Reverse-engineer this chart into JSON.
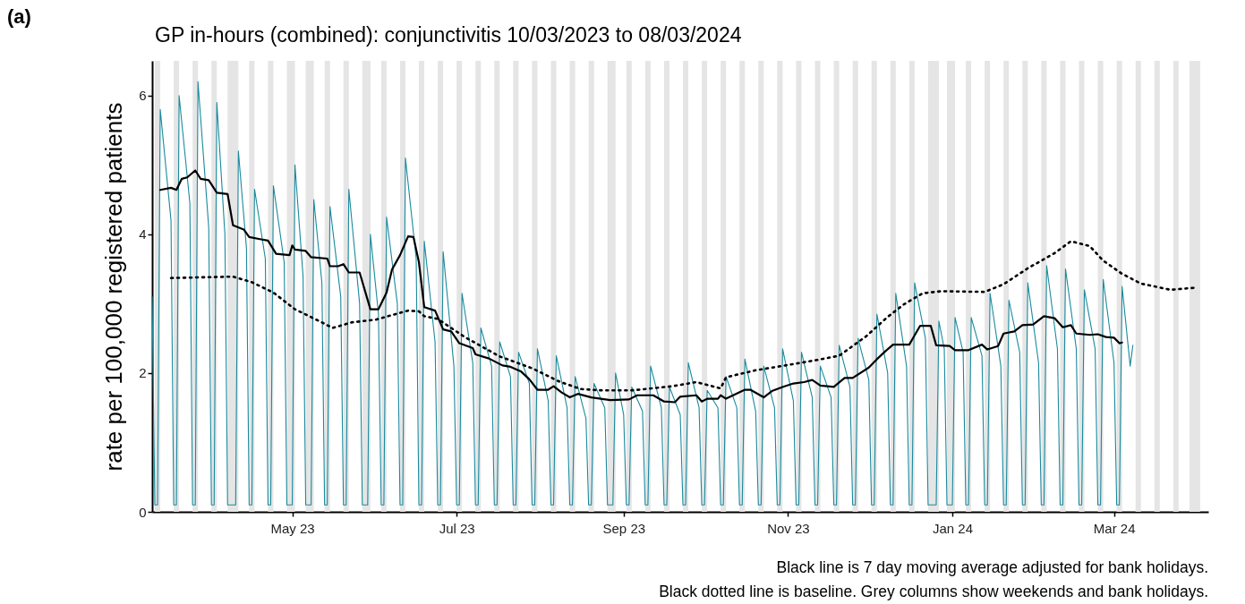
{
  "chart_data": {
    "type": "line",
    "title": "GP in-hours (combined): conjunctivitis 10/03/2023 to 08/03/2024",
    "ylabel": "rate per 100,000 registered patients",
    "annotations": [
      "(a)",
      "Black line is 7 day moving average adjusted for bank holidays.",
      "Black dotted line is baseline. Grey columns show weekends and bank holidays."
    ],
    "xlim": [
      "2023-03-10",
      "2024-04-05"
    ],
    "xticks": [
      {
        "value": "2023-05-01",
        "label": "May 23"
      },
      {
        "value": "2023-07-01",
        "label": "Jul 23"
      },
      {
        "value": "2023-09-01",
        "label": "Sep 23"
      },
      {
        "value": "2023-11-01",
        "label": "Nov 23"
      },
      {
        "value": "2024-01-01",
        "label": "Jan 24"
      },
      {
        "value": "2024-03-01",
        "label": "Mar 24"
      }
    ],
    "ylim": [
      0,
      6.5
    ],
    "yticks": [
      0,
      2,
      4,
      6
    ],
    "series": [
      {
        "color": "#1a8a9e",
        "line_style": "solid",
        "x": [
          "2023-03-10",
          "2023-03-11",
          "2023-03-12",
          "2023-03-13",
          "2023-03-17",
          "2023-03-18",
          "2023-03-19",
          "2023-03-20",
          "2023-03-24",
          "2023-03-25",
          "2023-03-26",
          "2023-03-27",
          "2023-03-31",
          "2023-04-01",
          "2023-04-02",
          "2023-04-03",
          "2023-04-06",
          "2023-04-07",
          "2023-04-10",
          "2023-04-11",
          "2023-04-14",
          "2023-04-15",
          "2023-04-16",
          "2023-04-17",
          "2023-04-21",
          "2023-04-22",
          "2023-04-23",
          "2023-04-24",
          "2023-04-28",
          "2023-04-29",
          "2023-05-01",
          "2023-05-02",
          "2023-05-05",
          "2023-05-06",
          "2023-05-08",
          "2023-05-09",
          "2023-05-12",
          "2023-05-13",
          "2023-05-14",
          "2023-05-15",
          "2023-05-19",
          "2023-05-20",
          "2023-05-21",
          "2023-05-22",
          "2023-05-26",
          "2023-05-27",
          "2023-05-29",
          "2023-05-30",
          "2023-06-02",
          "2023-06-03",
          "2023-06-04",
          "2023-06-05",
          "2023-06-09",
          "2023-06-10",
          "2023-06-11",
          "2023-06-12",
          "2023-06-16",
          "2023-06-17",
          "2023-06-18",
          "2023-06-19",
          "2023-06-23",
          "2023-06-24",
          "2023-06-25",
          "2023-06-26",
          "2023-06-30",
          "2023-07-01",
          "2023-07-02",
          "2023-07-03",
          "2023-07-07",
          "2023-07-08",
          "2023-07-09",
          "2023-07-10",
          "2023-07-14",
          "2023-07-15",
          "2023-07-16",
          "2023-07-17",
          "2023-07-21",
          "2023-07-22",
          "2023-07-23",
          "2023-07-24",
          "2023-07-28",
          "2023-07-29",
          "2023-07-30",
          "2023-07-31",
          "2023-08-04",
          "2023-08-05",
          "2023-08-06",
          "2023-08-07",
          "2023-08-11",
          "2023-08-12",
          "2023-08-13",
          "2023-08-14",
          "2023-08-18",
          "2023-08-19",
          "2023-08-20",
          "2023-08-21",
          "2023-08-25",
          "2023-08-26",
          "2023-08-28",
          "2023-08-29",
          "2023-09-01",
          "2023-09-02",
          "2023-09-03",
          "2023-09-04",
          "2023-09-08",
          "2023-09-09",
          "2023-09-10",
          "2023-09-11",
          "2023-09-15",
          "2023-09-16",
          "2023-09-17",
          "2023-09-18",
          "2023-09-22",
          "2023-09-23",
          "2023-09-24",
          "2023-09-25",
          "2023-09-29",
          "2023-09-30",
          "2023-10-01",
          "2023-10-02",
          "2023-10-06",
          "2023-10-07",
          "2023-10-08",
          "2023-10-09",
          "2023-10-13",
          "2023-10-14",
          "2023-10-15",
          "2023-10-16",
          "2023-10-20",
          "2023-10-21",
          "2023-10-22",
          "2023-10-23",
          "2023-10-27",
          "2023-10-28",
          "2023-10-29",
          "2023-10-30",
          "2023-11-03",
          "2023-11-04",
          "2023-11-05",
          "2023-11-06",
          "2023-11-10",
          "2023-11-11",
          "2023-11-12",
          "2023-11-13",
          "2023-11-17",
          "2023-11-18",
          "2023-11-19",
          "2023-11-20",
          "2023-11-24",
          "2023-11-25",
          "2023-11-26",
          "2023-11-27",
          "2023-12-01",
          "2023-12-02",
          "2023-12-03",
          "2023-12-04",
          "2023-12-08",
          "2023-12-09",
          "2023-12-10",
          "2023-12-11",
          "2023-12-15",
          "2023-12-16",
          "2023-12-17",
          "2023-12-18",
          "2023-12-22",
          "2023-12-23",
          "2023-12-26",
          "2023-12-27",
          "2023-12-29",
          "2023-12-30",
          "2024-01-01",
          "2024-01-02",
          "2024-01-05",
          "2024-01-06",
          "2024-01-07",
          "2024-01-08",
          "2024-01-12",
          "2024-01-13",
          "2024-01-14",
          "2024-01-15",
          "2024-01-19",
          "2024-01-20",
          "2024-01-21",
          "2024-01-22",
          "2024-01-26",
          "2024-01-27",
          "2024-01-28",
          "2024-01-29",
          "2024-02-02",
          "2024-02-03",
          "2024-02-04",
          "2024-02-05",
          "2024-02-09",
          "2024-02-10",
          "2024-02-11",
          "2024-02-12",
          "2024-02-16",
          "2024-02-17",
          "2024-02-18",
          "2024-02-19",
          "2024-02-23",
          "2024-02-24",
          "2024-02-25",
          "2024-02-26",
          "2024-03-01",
          "2024-03-02",
          "2024-03-03",
          "2024-03-04",
          "2024-03-07",
          "2024-03-08"
        ],
        "values": [
          3.1,
          0.1,
          0.1,
          5.8,
          4.2,
          0.1,
          0.1,
          6.0,
          4.45,
          0.1,
          0.1,
          6.2,
          4.1,
          0.1,
          0.1,
          5.9,
          4.0,
          0.1,
          0.1,
          5.2,
          3.8,
          0.1,
          0.1,
          4.65,
          3.65,
          0.1,
          0.1,
          4.7,
          3.6,
          0.1,
          0.1,
          5.0,
          3.4,
          0.1,
          0.1,
          4.5,
          3.3,
          0.1,
          0.1,
          4.4,
          3.1,
          0.1,
          0.1,
          4.65,
          3.0,
          0.1,
          0.1,
          4.0,
          2.85,
          0.1,
          0.1,
          4.25,
          3.0,
          0.1,
          0.1,
          5.1,
          3.65,
          0.1,
          0.1,
          3.9,
          2.45,
          0.1,
          0.1,
          3.75,
          2.1,
          0.1,
          0.1,
          3.15,
          2.15,
          0.1,
          0.1,
          2.65,
          2.1,
          0.1,
          0.1,
          2.45,
          1.95,
          0.1,
          0.1,
          2.3,
          1.85,
          0.1,
          0.1,
          2.35,
          1.6,
          0.1,
          0.1,
          2.25,
          1.5,
          0.1,
          0.1,
          1.95,
          1.35,
          0.1,
          0.1,
          1.85,
          1.5,
          0.1,
          0.1,
          2.0,
          1.4,
          0.1,
          0.1,
          1.8,
          1.45,
          0.1,
          0.1,
          2.1,
          1.5,
          0.1,
          0.1,
          1.8,
          1.4,
          0.1,
          0.1,
          2.15,
          1.5,
          0.1,
          0.1,
          1.75,
          1.5,
          0.1,
          0.1,
          1.95,
          1.5,
          0.1,
          0.1,
          2.2,
          1.45,
          0.1,
          0.1,
          2.1,
          1.5,
          0.1,
          0.1,
          2.35,
          1.6,
          0.1,
          0.1,
          2.3,
          1.65,
          0.1,
          0.1,
          2.1,
          1.65,
          0.1,
          0.1,
          2.4,
          1.8,
          0.1,
          0.1,
          2.5,
          1.9,
          0.1,
          0.1,
          2.85,
          2.0,
          0.1,
          0.1,
          3.15,
          2.1,
          0.1,
          0.1,
          3.3,
          2.5,
          0.1,
          0.1,
          2.75,
          2.35,
          0.1,
          0.1,
          2.8,
          2.3,
          0.1,
          0.1,
          2.8,
          2.25,
          0.1,
          0.1,
          3.15,
          2.1,
          0.1,
          0.1,
          3.05,
          2.3,
          0.1,
          0.1,
          3.3,
          2.15,
          0.1,
          0.1,
          3.55,
          2.35,
          0.1,
          0.1,
          3.5,
          2.35,
          0.1,
          0.1,
          3.2,
          2.35,
          0.1,
          0.1,
          3.35,
          2.15,
          0.1,
          0.1,
          3.25,
          2.1,
          2.4
        ]
      },
      {
        "color": "#000000",
        "line_style": "solid",
        "x": [
          "2023-03-13",
          "2023-03-17",
          "2023-03-19",
          "2023-03-21",
          "2023-03-23",
          "2023-03-26",
          "2023-03-28",
          "2023-03-31",
          "2023-04-03",
          "2023-04-07",
          "2023-04-09",
          "2023-04-13",
          "2023-04-15",
          "2023-04-19",
          "2023-04-22",
          "2023-04-25",
          "2023-04-30",
          "2023-05-01",
          "2023-05-02",
          "2023-05-06",
          "2023-05-08",
          "2023-05-14",
          "2023-05-15",
          "2023-05-18",
          "2023-05-20",
          "2023-05-22",
          "2023-05-26",
          "2023-05-30",
          "2023-06-02",
          "2023-06-05",
          "2023-06-07",
          "2023-06-10",
          "2023-06-13",
          "2023-06-15",
          "2023-06-17",
          "2023-06-19",
          "2023-06-23",
          "2023-06-26",
          "2023-06-29",
          "2023-07-02",
          "2023-07-07",
          "2023-07-08",
          "2023-07-13",
          "2023-07-18",
          "2023-07-21",
          "2023-07-25",
          "2023-07-28",
          "2023-07-31",
          "2023-08-04",
          "2023-08-06",
          "2023-08-09",
          "2023-08-12",
          "2023-08-15",
          "2023-08-20",
          "2023-08-27",
          "2023-09-03",
          "2023-09-06",
          "2023-09-12",
          "2023-09-16",
          "2023-09-20",
          "2023-09-22",
          "2023-09-28",
          "2023-09-30",
          "2023-10-02",
          "2023-10-06",
          "2023-10-07",
          "2023-10-09",
          "2023-10-16",
          "2023-10-18",
          "2023-10-23",
          "2023-10-26",
          "2023-10-30",
          "2023-11-03",
          "2023-11-07",
          "2023-11-10",
          "2023-11-13",
          "2023-11-18",
          "2023-11-22",
          "2023-11-25",
          "2023-12-01",
          "2023-12-04",
          "2023-12-07",
          "2023-12-10",
          "2023-12-16",
          "2023-12-20",
          "2023-12-24",
          "2023-12-26",
          "2023-12-31",
          "2024-01-02",
          "2024-01-07",
          "2024-01-12",
          "2024-01-14",
          "2024-01-18",
          "2024-01-20",
          "2024-01-24",
          "2024-01-27",
          "2024-01-31",
          "2024-02-04",
          "2024-02-08",
          "2024-02-11",
          "2024-02-14",
          "2024-02-16",
          "2024-02-21",
          "2024-02-24",
          "2024-02-27",
          "2024-03-01",
          "2024-03-03",
          "2024-03-04"
        ],
        "values": [
          4.64,
          4.67,
          4.64,
          4.8,
          4.82,
          4.92,
          4.8,
          4.78,
          4.6,
          4.58,
          4.13,
          4.07,
          3.96,
          3.93,
          3.91,
          3.72,
          3.7,
          3.84,
          3.78,
          3.76,
          3.67,
          3.65,
          3.54,
          3.54,
          3.57,
          3.45,
          3.45,
          2.92,
          2.92,
          3.16,
          3.49,
          3.7,
          3.97,
          3.96,
          3.6,
          2.95,
          2.9,
          2.63,
          2.6,
          2.43,
          2.36,
          2.27,
          2.21,
          2.11,
          2.09,
          2.02,
          1.91,
          1.76,
          1.76,
          1.81,
          1.72,
          1.65,
          1.7,
          1.65,
          1.61,
          1.62,
          1.68,
          1.68,
          1.59,
          1.58,
          1.66,
          1.68,
          1.59,
          1.63,
          1.63,
          1.68,
          1.63,
          1.76,
          1.76,
          1.65,
          1.74,
          1.8,
          1.85,
          1.87,
          1.9,
          1.82,
          1.8,
          1.93,
          1.93,
          2.08,
          2.2,
          2.31,
          2.41,
          2.41,
          2.68,
          2.68,
          2.4,
          2.39,
          2.33,
          2.33,
          2.41,
          2.34,
          2.39,
          2.57,
          2.6,
          2.69,
          2.7,
          2.82,
          2.79,
          2.66,
          2.69,
          2.57,
          2.55,
          2.56,
          2.52,
          2.51,
          2.43,
          2.44
        ]
      },
      {
        "color": "#000000",
        "line_style": "dotted",
        "x": [
          "2023-03-17",
          "2023-04-09",
          "2023-04-16",
          "2023-04-24",
          "2023-05-02",
          "2023-05-12",
          "2023-05-16",
          "2023-05-23",
          "2023-06-01",
          "2023-06-13",
          "2023-06-17",
          "2023-06-19",
          "2023-06-24",
          "2023-07-04",
          "2023-07-10",
          "2023-07-17",
          "2023-07-29",
          "2023-08-08",
          "2023-08-16",
          "2023-08-24",
          "2023-09-04",
          "2023-09-19",
          "2023-09-28",
          "2023-10-07",
          "2023-10-09",
          "2023-10-20",
          "2023-10-31",
          "2023-11-12",
          "2023-11-20",
          "2023-11-30",
          "2023-12-08",
          "2023-12-14",
          "2023-12-21",
          "2023-12-28",
          "2024-01-13",
          "2024-01-20",
          "2024-01-29",
          "2024-02-08",
          "2024-02-14",
          "2024-02-21",
          "2024-02-26",
          "2024-03-04",
          "2024-03-11",
          "2024-03-22",
          "2024-03-31"
        ],
        "values": [
          3.37,
          3.39,
          3.31,
          3.16,
          2.92,
          2.73,
          2.65,
          2.73,
          2.77,
          2.9,
          2.89,
          2.82,
          2.78,
          2.52,
          2.39,
          2.24,
          2.07,
          1.88,
          1.77,
          1.75,
          1.75,
          1.81,
          1.87,
          1.78,
          1.94,
          2.04,
          2.11,
          2.19,
          2.25,
          2.53,
          2.81,
          2.99,
          3.15,
          3.18,
          3.17,
          3.28,
          3.51,
          3.73,
          3.9,
          3.83,
          3.62,
          3.43,
          3.29,
          3.2,
          3.23
        ]
      }
    ],
    "bands": [
      {
        "axis": "x",
        "from": "2023-03-11",
        "to": "2023-03-13",
        "color": "#e5e5e5"
      },
      {
        "axis": "x",
        "from": "2023-03-18",
        "to": "2023-03-20",
        "color": "#e5e5e5"
      },
      {
        "axis": "x",
        "from": "2023-03-25",
        "to": "2023-03-27",
        "color": "#e5e5e5"
      },
      {
        "axis": "x",
        "from": "2023-04-01",
        "to": "2023-04-03",
        "color": "#e5e5e5"
      },
      {
        "axis": "x",
        "from": "2023-04-07",
        "to": "2023-04-11",
        "color": "#e5e5e5"
      },
      {
        "axis": "x",
        "from": "2023-04-15",
        "to": "2023-04-17",
        "color": "#e5e5e5"
      },
      {
        "axis": "x",
        "from": "2023-04-22",
        "to": "2023-04-24",
        "color": "#e5e5e5"
      },
      {
        "axis": "x",
        "from": "2023-04-29",
        "to": "2023-05-02",
        "color": "#e5e5e5"
      },
      {
        "axis": "x",
        "from": "2023-05-06",
        "to": "2023-05-09",
        "color": "#e5e5e5"
      },
      {
        "axis": "x",
        "from": "2023-05-13",
        "to": "2023-05-15",
        "color": "#e5e5e5"
      },
      {
        "axis": "x",
        "from": "2023-05-20",
        "to": "2023-05-22",
        "color": "#e5e5e5"
      },
      {
        "axis": "x",
        "from": "2023-05-27",
        "to": "2023-05-30",
        "color": "#e5e5e5"
      },
      {
        "axis": "x",
        "from": "2023-06-03",
        "to": "2023-06-05",
        "color": "#e5e5e5"
      },
      {
        "axis": "x",
        "from": "2023-06-10",
        "to": "2023-06-12",
        "color": "#e5e5e5"
      },
      {
        "axis": "x",
        "from": "2023-06-17",
        "to": "2023-06-19",
        "color": "#e5e5e5"
      },
      {
        "axis": "x",
        "from": "2023-06-24",
        "to": "2023-06-26",
        "color": "#e5e5e5"
      },
      {
        "axis": "x",
        "from": "2023-07-01",
        "to": "2023-07-03",
        "color": "#e5e5e5"
      },
      {
        "axis": "x",
        "from": "2023-07-08",
        "to": "2023-07-10",
        "color": "#e5e5e5"
      },
      {
        "axis": "x",
        "from": "2023-07-15",
        "to": "2023-07-17",
        "color": "#e5e5e5"
      },
      {
        "axis": "x",
        "from": "2023-07-22",
        "to": "2023-07-24",
        "color": "#e5e5e5"
      },
      {
        "axis": "x",
        "from": "2023-07-29",
        "to": "2023-07-31",
        "color": "#e5e5e5"
      },
      {
        "axis": "x",
        "from": "2023-08-05",
        "to": "2023-08-07",
        "color": "#e5e5e5"
      },
      {
        "axis": "x",
        "from": "2023-08-12",
        "to": "2023-08-14",
        "color": "#e5e5e5"
      },
      {
        "axis": "x",
        "from": "2023-08-19",
        "to": "2023-08-21",
        "color": "#e5e5e5"
      },
      {
        "axis": "x",
        "from": "2023-08-26",
        "to": "2023-08-29",
        "color": "#e5e5e5"
      },
      {
        "axis": "x",
        "from": "2023-09-02",
        "to": "2023-09-04",
        "color": "#e5e5e5"
      },
      {
        "axis": "x",
        "from": "2023-09-09",
        "to": "2023-09-11",
        "color": "#e5e5e5"
      },
      {
        "axis": "x",
        "from": "2023-09-16",
        "to": "2023-09-18",
        "color": "#e5e5e5"
      },
      {
        "axis": "x",
        "from": "2023-09-23",
        "to": "2023-09-25",
        "color": "#e5e5e5"
      },
      {
        "axis": "x",
        "from": "2023-09-30",
        "to": "2023-10-02",
        "color": "#e5e5e5"
      },
      {
        "axis": "x",
        "from": "2023-10-07",
        "to": "2023-10-09",
        "color": "#e5e5e5"
      },
      {
        "axis": "x",
        "from": "2023-10-14",
        "to": "2023-10-16",
        "color": "#e5e5e5"
      },
      {
        "axis": "x",
        "from": "2023-10-21",
        "to": "2023-10-23",
        "color": "#e5e5e5"
      },
      {
        "axis": "x",
        "from": "2023-10-28",
        "to": "2023-10-30",
        "color": "#e5e5e5"
      },
      {
        "axis": "x",
        "from": "2023-11-04",
        "to": "2023-11-06",
        "color": "#e5e5e5"
      },
      {
        "axis": "x",
        "from": "2023-11-11",
        "to": "2023-11-13",
        "color": "#e5e5e5"
      },
      {
        "axis": "x",
        "from": "2023-11-18",
        "to": "2023-11-20",
        "color": "#e5e5e5"
      },
      {
        "axis": "x",
        "from": "2023-11-25",
        "to": "2023-11-27",
        "color": "#e5e5e5"
      },
      {
        "axis": "x",
        "from": "2023-12-02",
        "to": "2023-12-04",
        "color": "#e5e5e5"
      },
      {
        "axis": "x",
        "from": "2023-12-09",
        "to": "2023-12-11",
        "color": "#e5e5e5"
      },
      {
        "axis": "x",
        "from": "2023-12-16",
        "to": "2023-12-18",
        "color": "#e5e5e5"
      },
      {
        "axis": "x",
        "from": "2023-12-23",
        "to": "2023-12-27",
        "color": "#e5e5e5"
      },
      {
        "axis": "x",
        "from": "2023-12-30",
        "to": "2024-01-02",
        "color": "#e5e5e5"
      },
      {
        "axis": "x",
        "from": "2024-01-06",
        "to": "2024-01-08",
        "color": "#e5e5e5"
      },
      {
        "axis": "x",
        "from": "2024-01-13",
        "to": "2024-01-15",
        "color": "#e5e5e5"
      },
      {
        "axis": "x",
        "from": "2024-01-20",
        "to": "2024-01-22",
        "color": "#e5e5e5"
      },
      {
        "axis": "x",
        "from": "2024-01-27",
        "to": "2024-01-29",
        "color": "#e5e5e5"
      },
      {
        "axis": "x",
        "from": "2024-02-03",
        "to": "2024-02-05",
        "color": "#e5e5e5"
      },
      {
        "axis": "x",
        "from": "2024-02-10",
        "to": "2024-02-12",
        "color": "#e5e5e5"
      },
      {
        "axis": "x",
        "from": "2024-02-17",
        "to": "2024-02-19",
        "color": "#e5e5e5"
      },
      {
        "axis": "x",
        "from": "2024-02-24",
        "to": "2024-02-26",
        "color": "#e5e5e5"
      },
      {
        "axis": "x",
        "from": "2024-03-02",
        "to": "2024-03-04",
        "color": "#e5e5e5"
      },
      {
        "axis": "x",
        "from": "2024-03-09",
        "to": "2024-03-11",
        "color": "#e5e5e5"
      },
      {
        "axis": "x",
        "from": "2024-03-16",
        "to": "2024-03-18",
        "color": "#e5e5e5"
      },
      {
        "axis": "x",
        "from": "2024-03-23",
        "to": "2024-03-25",
        "color": "#e5e5e5"
      },
      {
        "axis": "x",
        "from": "2024-03-29",
        "to": "2024-04-02",
        "color": "#e5e5e5"
      }
    ]
  }
}
